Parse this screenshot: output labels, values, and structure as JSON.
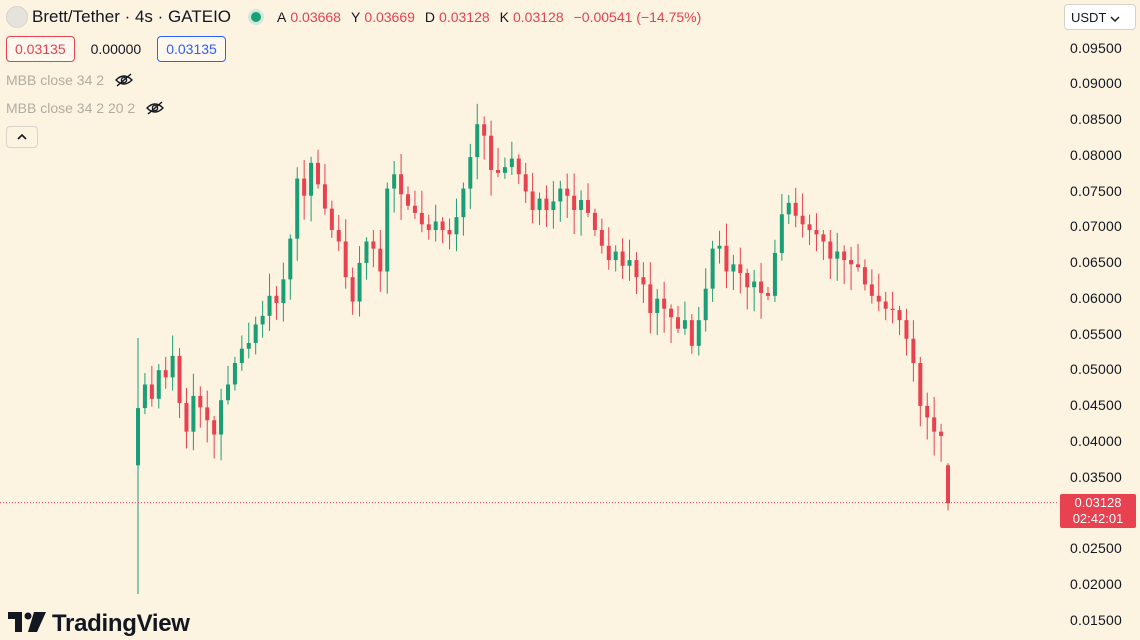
{
  "header": {
    "title": "Brett/Tether · 4s · GATEIO",
    "ohlc": [
      {
        "key": "A",
        "value": "0.03668"
      },
      {
        "key": "Y",
        "value": "0.03669"
      },
      {
        "key": "D",
        "value": "0.03128"
      },
      {
        "key": "K",
        "value": "0.03128"
      }
    ],
    "change": "−0.00541 (−14.75%)",
    "status_icon": "market-open-dot",
    "colors": {
      "down": "#e8414f",
      "up": "#1a9e76",
      "background": "#fdf3e1"
    }
  },
  "trade": {
    "sell_price": "0.03135",
    "spread": "0.00000",
    "buy_price": "0.03135"
  },
  "indicators": [
    {
      "label": "MBB close 34 2",
      "icon": "eye-crossed-icon"
    },
    {
      "label": "MBB close 34 2 20 2",
      "icon": "eye-crossed-icon"
    }
  ],
  "collapse_icon": "chevron-up-icon",
  "price_scale": {
    "currency": "USDT",
    "ticks": [
      "0.09500",
      "0.09000",
      "0.08500",
      "0.08000",
      "0.07500",
      "0.07000",
      "0.06500",
      "0.06000",
      "0.05500",
      "0.05000",
      "0.04500",
      "0.04000",
      "0.03500",
      "0.02500",
      "0.02000",
      "0.01500"
    ],
    "last_price": "0.03128",
    "countdown": "02:42:01"
  },
  "brand": "TradingView",
  "chart_data": {
    "type": "candlestick",
    "range": [
      0.014,
      0.097
    ],
    "last_price": 0.03128,
    "close": [
      0.0445,
      0.0478,
      0.0458,
      0.0498,
      0.0488,
      0.0518,
      0.0452,
      0.0412,
      0.0462,
      0.0446,
      0.0428,
      0.0408,
      0.0456,
      0.0478,
      0.0508,
      0.0528,
      0.0536,
      0.0562,
      0.0574,
      0.0602,
      0.0592,
      0.0625,
      0.0682,
      0.0766,
      0.0742,
      0.0788,
      0.0758,
      0.0724,
      0.0694,
      0.0678,
      0.0628,
      0.0594,
      0.0648,
      0.0678,
      0.0668,
      0.0636,
      0.0752,
      0.0772,
      0.0744,
      0.0728,
      0.0718,
      0.0702,
      0.0694,
      0.0706,
      0.0694,
      0.0688,
      0.0712,
      0.0752,
      0.0796,
      0.0842,
      0.0826,
      0.0778,
      0.0774,
      0.0782,
      0.0794,
      0.0772,
      0.0748,
      0.0722,
      0.0738,
      0.0722,
      0.0734,
      0.0752,
      0.0742,
      0.0722,
      0.0736,
      0.0718,
      0.0694,
      0.0672,
      0.0652,
      0.0664,
      0.0644,
      0.0652,
      0.0628,
      0.0618,
      0.0578,
      0.0598,
      0.0584,
      0.0572,
      0.0556,
      0.0568,
      0.0532,
      0.0568,
      0.0612,
      0.0668,
      0.0672,
      0.0636,
      0.0646,
      0.0634,
      0.0614,
      0.0622,
      0.0606,
      0.0602,
      0.0662,
      0.0716,
      0.0732,
      0.0714,
      0.0702,
      0.0694,
      0.0688,
      0.0678,
      0.0654,
      0.0664,
      0.0652,
      0.0646,
      0.0642,
      0.0618,
      0.0602,
      0.0594,
      0.0584,
      0.0582,
      0.0568,
      0.0542,
      0.0508,
      0.0448,
      0.0432,
      0.0412,
      0.0406,
      0.0312
    ],
    "ohlc_sample": [
      {
        "o": 0.0365,
        "h": 0.0543,
        "l": 0.0185,
        "c": 0.0445
      },
      {
        "o": 0.0365,
        "h": 0.0368,
        "l": 0.0302,
        "c": 0.0312
      }
    ]
  }
}
